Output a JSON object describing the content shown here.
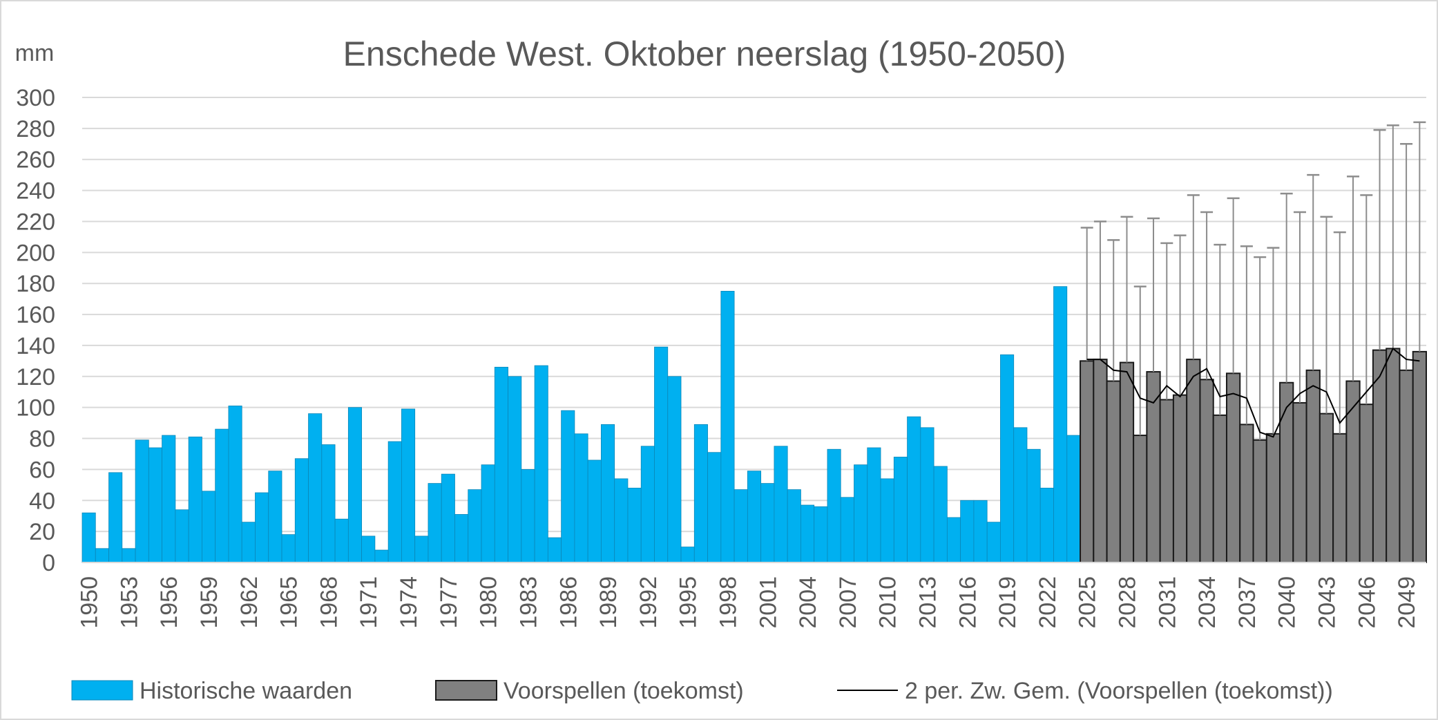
{
  "chart_data": {
    "type": "bar",
    "title": "Enschede West. Oktober neerslag (1950-2050)",
    "ylabel": "mm",
    "xlabel": "",
    "ylim": [
      0,
      300
    ],
    "yticks": [
      0,
      20,
      40,
      60,
      80,
      100,
      120,
      140,
      160,
      180,
      200,
      220,
      240,
      260,
      280,
      300
    ],
    "grid": true,
    "legend_position": "bottom",
    "x_tick_labels": [
      "1950",
      "1953",
      "1956",
      "1959",
      "1962",
      "1965",
      "1968",
      "1971",
      "1974",
      "1977",
      "1980",
      "1983",
      "1986",
      "1989",
      "1992",
      "1995",
      "1998",
      "2001",
      "2004",
      "2007",
      "2010",
      "2013",
      "2016",
      "2019",
      "2022",
      "2025",
      "2028",
      "2031",
      "2034",
      "2037",
      "2040",
      "2043",
      "2046",
      "2049"
    ],
    "colors": {
      "historical": "#00b0f0",
      "forecast": "#808080",
      "forecast_border": "#1a1a1a",
      "moving_average": "#000000",
      "error_bar": "#8c8c8c",
      "grid": "#d9d9d9",
      "text": "#595959"
    },
    "series": [
      {
        "name": "Historische waarden",
        "kind": "bar",
        "x": [
          1950,
          1951,
          1952,
          1953,
          1954,
          1955,
          1956,
          1957,
          1958,
          1959,
          1960,
          1961,
          1962,
          1963,
          1964,
          1965,
          1966,
          1967,
          1968,
          1969,
          1970,
          1971,
          1972,
          1973,
          1974,
          1975,
          1976,
          1977,
          1978,
          1979,
          1980,
          1981,
          1982,
          1983,
          1984,
          1985,
          1986,
          1987,
          1988,
          1989,
          1990,
          1991,
          1992,
          1993,
          1994,
          1995,
          1996,
          1997,
          1998,
          1999,
          2000,
          2001,
          2002,
          2003,
          2004,
          2005,
          2006,
          2007,
          2008,
          2009,
          2010,
          2011,
          2012,
          2013,
          2014,
          2015,
          2016,
          2017,
          2018,
          2019,
          2020,
          2021,
          2022,
          2023,
          2024
        ],
        "values": [
          32,
          9,
          58,
          9,
          79,
          74,
          82,
          34,
          81,
          46,
          86,
          101,
          26,
          45,
          59,
          18,
          67,
          96,
          76,
          28,
          100,
          17,
          8,
          78,
          99,
          17,
          51,
          57,
          31,
          47,
          63,
          126,
          120,
          60,
          127,
          16,
          98,
          83,
          66,
          89,
          54,
          48,
          75,
          139,
          120,
          10,
          89,
          71,
          175,
          47,
          59,
          51,
          75,
          47,
          37,
          36,
          73,
          42,
          63,
          74,
          54,
          68,
          94,
          87,
          62,
          29,
          40,
          40,
          26,
          134,
          87,
          73,
          48,
          178,
          82
        ]
      },
      {
        "name": "Voorspellen (toekomst)",
        "kind": "bar",
        "x": [
          2025,
          2026,
          2027,
          2028,
          2029,
          2030,
          2031,
          2032,
          2033,
          2034,
          2035,
          2036,
          2037,
          2038,
          2039,
          2040,
          2041,
          2042,
          2043,
          2044,
          2045,
          2046,
          2047,
          2048,
          2049,
          2050
        ],
        "values": [
          130,
          131,
          117,
          129,
          82,
          123,
          105,
          108,
          131,
          118,
          95,
          122,
          89,
          79,
          83,
          116,
          103,
          124,
          96,
          83,
          117,
          102,
          137,
          138,
          124,
          136
        ],
        "upper": [
          216,
          220,
          208,
          223,
          178,
          222,
          206,
          211,
          237,
          226,
          205,
          235,
          204,
          197,
          203,
          238,
          226,
          250,
          223,
          213,
          249,
          237,
          279,
          282,
          270,
          284
        ]
      },
      {
        "name": "2 per. Zw. Gem. (Voorspellen (toekomst))",
        "kind": "line",
        "x": [
          2025,
          2026,
          2027,
          2028,
          2029,
          2030,
          2031,
          2032,
          2033,
          2034,
          2035,
          2036,
          2037,
          2038,
          2039,
          2040,
          2041,
          2042,
          2043,
          2044,
          2045,
          2046,
          2047,
          2048,
          2049,
          2050
        ],
        "values": [
          131,
          131,
          124,
          123,
          106,
          103,
          114,
          107,
          120,
          125,
          107,
          109,
          106,
          84,
          81,
          100,
          109,
          114,
          110,
          90,
          100,
          110,
          120,
          138,
          131,
          130
        ]
      }
    ]
  }
}
